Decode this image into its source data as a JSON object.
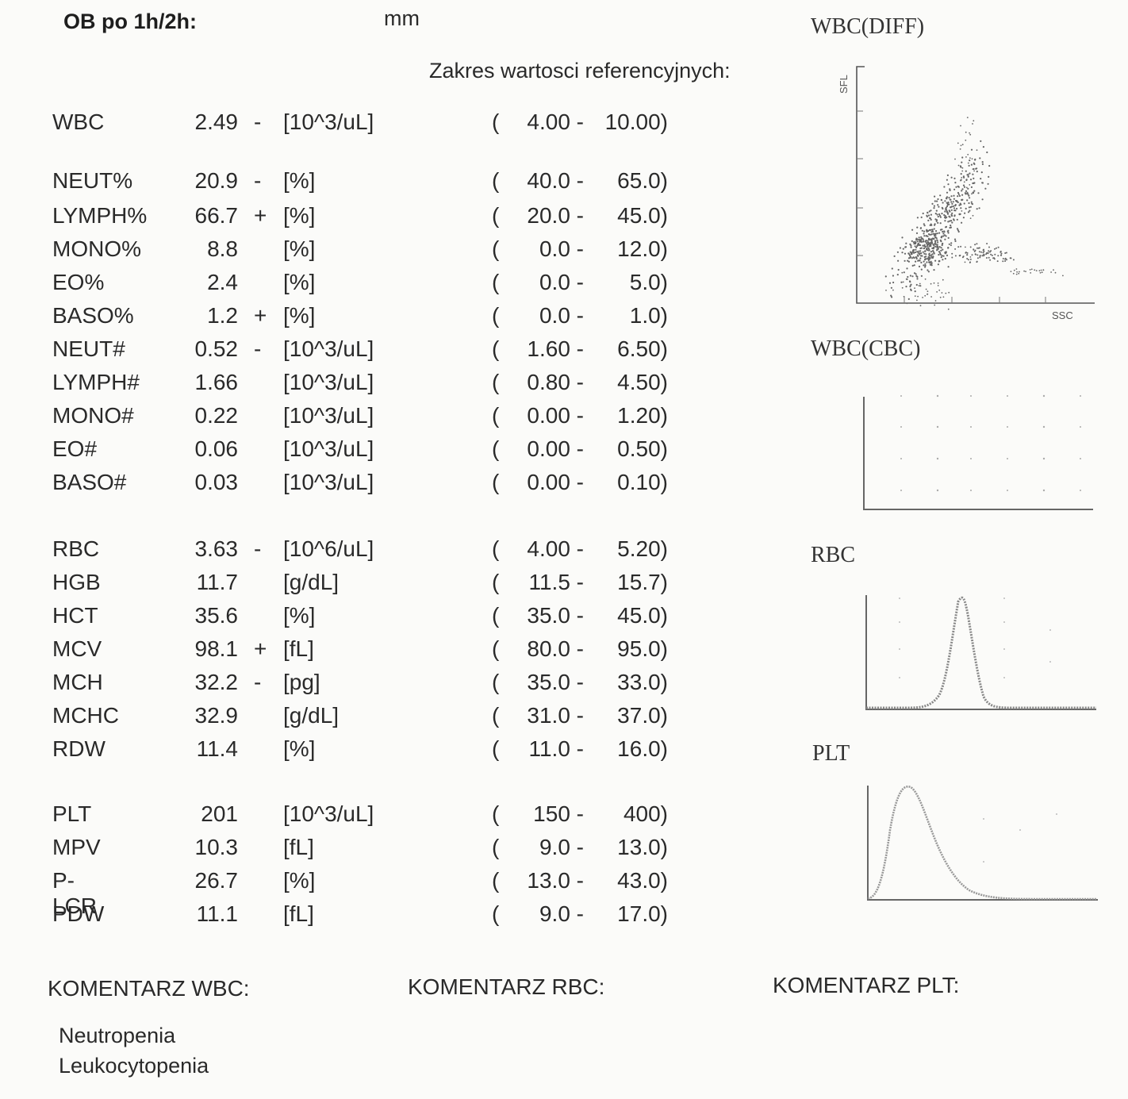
{
  "header": {
    "title": "OB po 1h/2h:",
    "unit": "mm",
    "reference_title": "Zakres wartosci referencyjnych:"
  },
  "results": [
    {
      "name": "WBC",
      "value": "2.49",
      "flag": "-",
      "unit": "[10^3/uL]",
      "low": "4.00 -",
      "high": "10.00)"
    },
    {
      "name": "NEUT%",
      "value": "20.9",
      "flag": "-",
      "unit": "[%]",
      "low": "40.0 -",
      "high": "65.0)"
    },
    {
      "name": "LYMPH%",
      "value": "66.7",
      "flag": "+",
      "unit": "[%]",
      "low": "20.0 -",
      "high": "45.0)"
    },
    {
      "name": "MONO%",
      "value": "8.8",
      "flag": "",
      "unit": "[%]",
      "low": "0.0 -",
      "high": "12.0)"
    },
    {
      "name": "EO%",
      "value": "2.4",
      "flag": "",
      "unit": "[%]",
      "low": "0.0 -",
      "high": "5.0)"
    },
    {
      "name": "BASO%",
      "value": "1.2",
      "flag": "+",
      "unit": "[%]",
      "low": "0.0 -",
      "high": "1.0)"
    },
    {
      "name": "NEUT#",
      "value": "0.52",
      "flag": "-",
      "unit": "[10^3/uL]",
      "low": "1.60 -",
      "high": "6.50)"
    },
    {
      "name": "LYMPH#",
      "value": "1.66",
      "flag": "",
      "unit": "[10^3/uL]",
      "low": "0.80 -",
      "high": "4.50)"
    },
    {
      "name": "MONO#",
      "value": "0.22",
      "flag": "",
      "unit": "[10^3/uL]",
      "low": "0.00 -",
      "high": "1.20)"
    },
    {
      "name": "EO#",
      "value": "0.06",
      "flag": "",
      "unit": "[10^3/uL]",
      "low": "0.00 -",
      "high": "0.50)"
    },
    {
      "name": "BASO#",
      "value": "0.03",
      "flag": "",
      "unit": "[10^3/uL]",
      "low": "0.00 -",
      "high": "0.10)"
    },
    {
      "name": "RBC",
      "value": "3.63",
      "flag": "-",
      "unit": "[10^6/uL]",
      "low": "4.00 -",
      "high": "5.20)"
    },
    {
      "name": "HGB",
      "value": "11.7",
      "flag": "",
      "unit": "[g/dL]",
      "low": "11.5 -",
      "high": "15.7)"
    },
    {
      "name": "HCT",
      "value": "35.6",
      "flag": "",
      "unit": "[%]",
      "low": "35.0 -",
      "high": "45.0)"
    },
    {
      "name": "MCV",
      "value": "98.1",
      "flag": "+",
      "unit": "[fL]",
      "low": "80.0 -",
      "high": "95.0)"
    },
    {
      "name": "MCH",
      "value": "32.2",
      "flag": "-",
      "unit": "[pg]",
      "low": "35.0 -",
      "high": "33.0)"
    },
    {
      "name": "MCHC",
      "value": "32.9",
      "flag": "",
      "unit": "[g/dL]",
      "low": "31.0 -",
      "high": "37.0)"
    },
    {
      "name": "RDW",
      "value": "11.4",
      "flag": "",
      "unit": "[%]",
      "low": "11.0 -",
      "high": "16.0)"
    },
    {
      "name": "PLT",
      "value": "201",
      "flag": "",
      "unit": "[10^3/uL]",
      "low": "150 -",
      "high": "400)"
    },
    {
      "name": "MPV",
      "value": "10.3",
      "flag": "",
      "unit": "[fL]",
      "low": "9.0 -",
      "high": "13.0)"
    },
    {
      "name": "P-LCR",
      "value": "26.7",
      "flag": "",
      "unit": "[%]",
      "low": "13.0 -",
      "high": "43.0)"
    },
    {
      "name": "PDW",
      "value": "11.1",
      "flag": "",
      "unit": "[fL]",
      "low": "9.0 -",
      "high": "17.0)"
    }
  ],
  "plots": {
    "wbc_diff": {
      "title": "WBC(DIFF)",
      "y_label": "SFL",
      "x_label": "SSC"
    },
    "wbc_cbc": {
      "title": "WBC(CBC)"
    },
    "rbc": {
      "title": "RBC"
    },
    "plt": {
      "title": "PLT"
    }
  },
  "comments": {
    "wbc_title": "KOMENTARZ WBC:",
    "rbc_title": "KOMENTARZ RBC:",
    "plt_title": "KOMENTARZ PLT:",
    "wbc_lines": [
      "Neutropenia",
      "Leukocytopenia"
    ]
  }
}
